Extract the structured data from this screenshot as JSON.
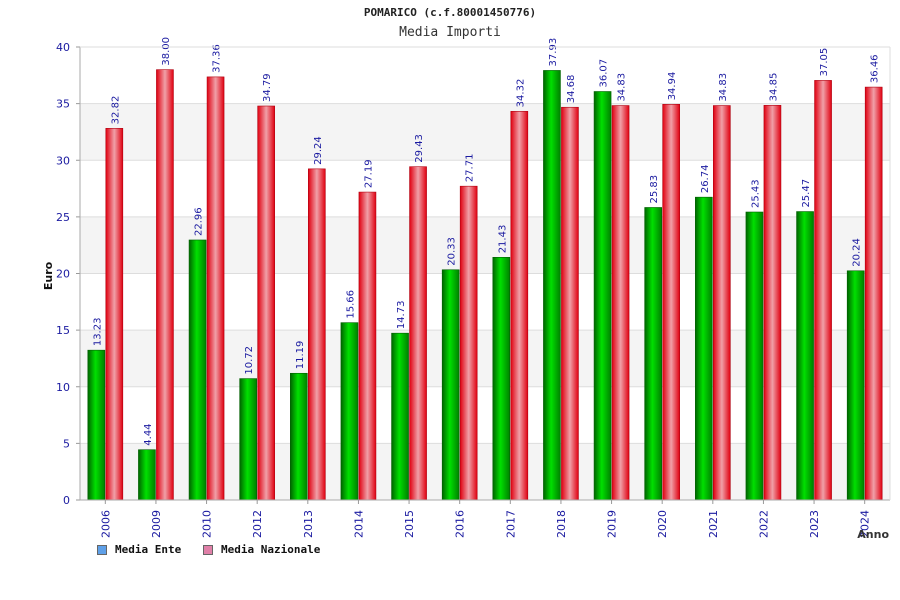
{
  "chart_data": {
    "type": "bar",
    "title": "POMARICO (c.f.80001450776)",
    "subtitle": "Media Importi",
    "xlabel": "Anno",
    "ylabel": "Euro",
    "ylim": [
      0,
      40
    ],
    "y_ticks": [
      0,
      5,
      10,
      15,
      20,
      25,
      30,
      35,
      40
    ],
    "grid": true,
    "legend_position": "bottom-left",
    "categories": [
      "2006",
      "2009",
      "2010",
      "2012",
      "2013",
      "2014",
      "2015",
      "2016",
      "2017",
      "2018",
      "2019",
      "2020",
      "2021",
      "2022",
      "2023",
      "2024"
    ],
    "series": [
      {
        "name": "Media Ente",
        "color": "#00b000",
        "legend_color": "#5fa0e8",
        "values": [
          13.23,
          4.44,
          22.96,
          10.72,
          11.19,
          15.66,
          14.73,
          20.33,
          21.43,
          37.93,
          36.07,
          25.83,
          26.74,
          25.43,
          25.47,
          20.24
        ],
        "labels": [
          "13.23",
          "4.44",
          "22.96",
          "10.72",
          "11.19",
          "15.66",
          "14.73",
          "20.33",
          "21.43",
          "37.93",
          "36.07",
          "25.83",
          "26.74",
          "25.43",
          "25.47",
          "20.24"
        ]
      },
      {
        "name": "Media Nazionale",
        "color": "#e81a2a",
        "legend_color": "#e080a8",
        "values": [
          32.82,
          38.0,
          37.36,
          34.79,
          29.24,
          27.19,
          29.43,
          27.71,
          34.32,
          34.68,
          34.83,
          34.94,
          34.83,
          34.85,
          37.05,
          36.46
        ],
        "labels": [
          "32.82",
          "38.00",
          "37.36",
          "34.79",
          "29.24",
          "27.19",
          "29.43",
          "27.71",
          "34.32",
          "34.68",
          "34.83",
          "34.94",
          "34.83",
          "34.85",
          "37.05",
          "36.46"
        ]
      }
    ]
  }
}
